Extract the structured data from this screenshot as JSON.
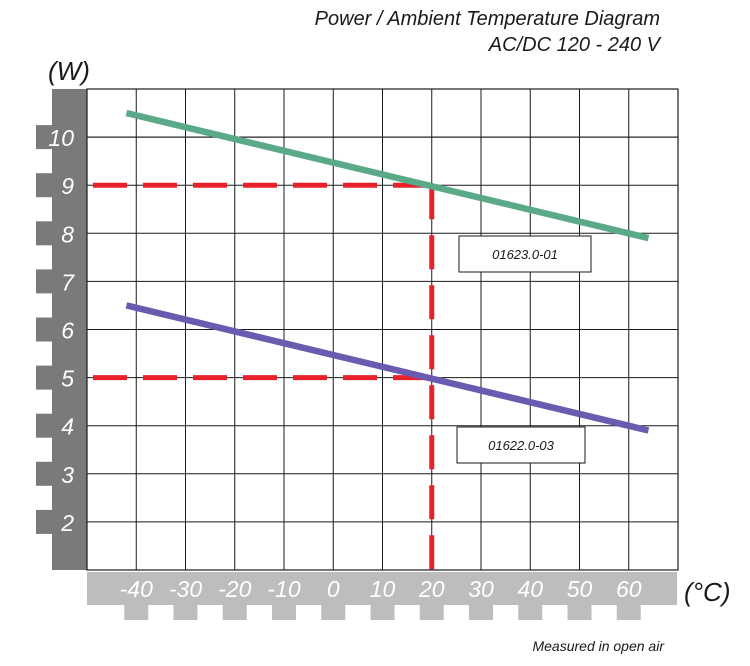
{
  "chart_data": {
    "type": "line",
    "title": "Power / Ambient Temperature Diagram",
    "subtitle": "AC/DC 120 - 240 V",
    "ylabel": "(W)",
    "xlabel": "(°C)",
    "footnote": "Measured in open air",
    "x_ticks": [
      -40,
      -30,
      -20,
      -10,
      0,
      10,
      20,
      30,
      40,
      50,
      60
    ],
    "y_ticks": [
      2,
      3,
      4,
      5,
      6,
      7,
      8,
      9,
      10
    ],
    "xlim": [
      -50,
      70
    ],
    "ylim": [
      1,
      11
    ],
    "grid": true,
    "series": [
      {
        "name": "01623.0-01",
        "color": "#5aaa88",
        "x": [
          -42,
          64
        ],
        "values": [
          10.5,
          7.9
        ]
      },
      {
        "name": "01622.0-03",
        "color": "#6a5bb0",
        "x": [
          -42,
          64
        ],
        "values": [
          6.5,
          3.9
        ]
      }
    ],
    "reference_lines": [
      {
        "color": "#e8202a",
        "from": [
          -50,
          9
        ],
        "corner": [
          20,
          9
        ]
      },
      {
        "color": "#e8202a",
        "from": [
          -50,
          5
        ],
        "corner": [
          20,
          5
        ]
      },
      {
        "color": "#e8202a",
        "vertical_x": 20,
        "y_range": [
          1,
          9
        ]
      }
    ]
  }
}
